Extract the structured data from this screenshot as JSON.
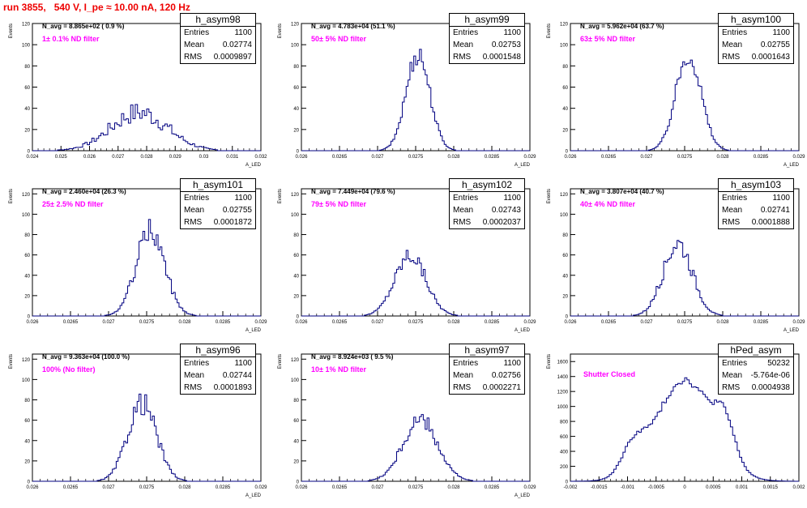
{
  "header": {
    "title": "run 3855,   540 V, I_pe ≈ 10.00 nA, 120 Hz"
  },
  "stats_labels": {
    "entries": "Entries",
    "mean": "Mean",
    "rms": "RMS"
  },
  "colors": {
    "histogram_line": "#000080",
    "title_text": "#ee0000",
    "filter_text": "#ff00ff"
  },
  "chart_data": [
    {
      "type": "histogram",
      "name": "h_asym98",
      "navg": "N_avg = 8.865e+02 ( 0.9 %)",
      "filter": "1± 0.1% ND filter",
      "entries": "1100",
      "mean": "0.02774",
      "rms": "0.0009897",
      "xlim": [
        0.024,
        0.032
      ],
      "xticks": [
        "0.024",
        "0.025",
        "0.026",
        "0.027",
        "0.028",
        "0.029",
        "0.03",
        "0.031",
        "0.032"
      ],
      "ylim": [
        0,
        120
      ],
      "yticks": [
        "0",
        "20",
        "40",
        "60",
        "80",
        "100",
        "120"
      ],
      "ylabel": "Events",
      "xlabel": "A_LED",
      "mu": 0.02774,
      "sigma": 0.00099,
      "peak": 36,
      "bins": 100,
      "noise": 0.28
    },
    {
      "type": "histogram",
      "name": "h_asym99",
      "navg": "N_avg = 4.783e+04 (51.1 %)",
      "filter": "50± 5% ND filter",
      "entries": "1100",
      "mean": "0.02753",
      "rms": "0.0001548",
      "xlim": [
        0.026,
        0.029
      ],
      "xticks": [
        "0.026",
        "0.0265",
        "0.027",
        "0.0275",
        "0.028",
        "0.0285",
        "0.029"
      ],
      "ylim": [
        0,
        120
      ],
      "yticks": [
        "0",
        "20",
        "40",
        "60",
        "80",
        "100",
        "120"
      ],
      "ylabel": "Events",
      "xlabel": "A_LED",
      "mu": 0.02753,
      "sigma": 0.000155,
      "peak": 92,
      "bins": 120,
      "noise": 0.12
    },
    {
      "type": "histogram",
      "name": "h_asym100",
      "navg": "N_avg = 5.962e+04 (63.7 %)",
      "filter": "63± 5% ND filter",
      "entries": "1100",
      "mean": "0.02755",
      "rms": "0.0001643",
      "xlim": [
        0.026,
        0.029
      ],
      "xticks": [
        "0.026",
        "0.0265",
        "0.027",
        "0.0275",
        "0.028",
        "0.0285",
        "0.029"
      ],
      "ylim": [
        0,
        120
      ],
      "yticks": [
        "0",
        "20",
        "40",
        "60",
        "80",
        "100",
        "120"
      ],
      "ylabel": "Events",
      "xlabel": "A_LED",
      "mu": 0.02755,
      "sigma": 0.000164,
      "peak": 92,
      "bins": 120,
      "noise": 0.12
    },
    {
      "type": "histogram",
      "name": "h_asym101",
      "navg": "N_avg = 2.460e+04 (26.3 %)",
      "filter": "25± 2.5% ND filter",
      "entries": "1100",
      "mean": "0.02755",
      "rms": "0.0001872",
      "xlim": [
        0.026,
        0.029
      ],
      "xticks": [
        "0.026",
        "0.0265",
        "0.027",
        "0.0275",
        "0.028",
        "0.0285",
        "0.029"
      ],
      "ylim": [
        0,
        125
      ],
      "yticks": [
        "0",
        "20",
        "40",
        "60",
        "80",
        "100",
        "120"
      ],
      "ylabel": "Events",
      "xlabel": "A_LED",
      "mu": 0.02755,
      "sigma": 0.000187,
      "peak": 84,
      "bins": 120,
      "noise": 0.15
    },
    {
      "type": "histogram",
      "name": "h_asym102",
      "navg": "N_avg = 7.449e+04 (79.6 %)",
      "filter": "79± 5% ND filter",
      "entries": "1100",
      "mean": "0.02743",
      "rms": "0.0002037",
      "xlim": [
        0.026,
        0.029
      ],
      "xticks": [
        "0.026",
        "0.0265",
        "0.027",
        "0.0275",
        "0.028",
        "0.0285",
        "0.029"
      ],
      "ylim": [
        0,
        125
      ],
      "yticks": [
        "0",
        "20",
        "40",
        "60",
        "80",
        "100",
        "120"
      ],
      "ylabel": "Events",
      "xlabel": "A_LED",
      "mu": 0.02743,
      "sigma": 0.000204,
      "peak": 60,
      "bins": 120,
      "noise": 0.15
    },
    {
      "type": "histogram",
      "name": "h_asym103",
      "navg": "N_avg = 3.807e+04 (40.7 %)",
      "filter": "40± 4% ND filter",
      "entries": "1100",
      "mean": "0.02741",
      "rms": "0.0001888",
      "xlim": [
        0.026,
        0.029
      ],
      "xticks": [
        "0.026",
        "0.0265",
        "0.027",
        "0.0275",
        "0.028",
        "0.0285",
        "0.029"
      ],
      "ylim": [
        0,
        125
      ],
      "yticks": [
        "0",
        "20",
        "40",
        "60",
        "80",
        "100",
        "120"
      ],
      "ylabel": "Events",
      "xlabel": "A_LED",
      "mu": 0.02741,
      "sigma": 0.000189,
      "peak": 72,
      "bins": 120,
      "noise": 0.15
    },
    {
      "type": "histogram",
      "name": "h_asym96",
      "navg": "N_avg = 9.363e+04 (100.0 %)",
      "filter": "100% (No filter)",
      "entries": "1100",
      "mean": "0.02744",
      "rms": "0.0001893",
      "xlim": [
        0.026,
        0.029
      ],
      "xticks": [
        "0.026",
        "0.0265",
        "0.027",
        "0.0275",
        "0.028",
        "0.0285",
        "0.029"
      ],
      "ylim": [
        0,
        125
      ],
      "yticks": [
        "0",
        "20",
        "40",
        "60",
        "80",
        "100",
        "120"
      ],
      "ylabel": "Events",
      "xlabel": "A_LED",
      "mu": 0.02744,
      "sigma": 0.000189,
      "peak": 77,
      "bins": 120,
      "noise": 0.15
    },
    {
      "type": "histogram",
      "name": "h_asym97",
      "navg": "N_avg = 8.924e+03 ( 9.5 %)",
      "filter": "10± 1% ND filter",
      "entries": "1100",
      "mean": "0.02756",
      "rms": "0.0002271",
      "xlim": [
        0.026,
        0.029
      ],
      "xticks": [
        "0.026",
        "0.0265",
        "0.027",
        "0.0275",
        "0.028",
        "0.0285",
        "0.029"
      ],
      "ylim": [
        0,
        125
      ],
      "yticks": [
        "0",
        "20",
        "40",
        "60",
        "80",
        "100",
        "120"
      ],
      "ylabel": "Events",
      "xlabel": "A_LED",
      "mu": 0.02756,
      "sigma": 0.000227,
      "peak": 60,
      "bins": 120,
      "noise": 0.15
    },
    {
      "type": "histogram",
      "name": "hPed_asym",
      "navg": "",
      "filter": "Shutter Closed",
      "entries": "50232",
      "mean": "-5.764e-06",
      "rms": "0.0004938",
      "xlim": [
        -0.002,
        0.002
      ],
      "xticks": [
        "-0.002",
        "-0.0015",
        "-0.001",
        "-0.0005",
        "0",
        "0.0005",
        "0.001",
        "0.0015",
        "0.002"
      ],
      "ylim": [
        0,
        1700
      ],
      "yticks": [
        "0",
        "200",
        "400",
        "600",
        "800",
        "1000",
        "1200",
        "1400",
        "1600"
      ],
      "ylabel": "Events",
      "xlabel": "",
      "mu": 0.0,
      "sigma": 0.00049,
      "peak": 1600,
      "bins": 100,
      "noise": 0.04,
      "shape": "ped"
    }
  ]
}
